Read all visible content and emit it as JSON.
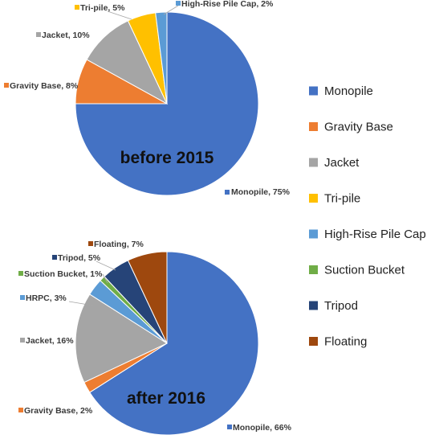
{
  "chart_data": [
    {
      "type": "pie",
      "title": "before 2015",
      "slices": [
        {
          "label": "Monopile",
          "value": 75,
          "display": "Monopile, 75%",
          "color": "#4472C4"
        },
        {
          "label": "Gravity Base",
          "value": 8,
          "display": "Gravity Base, 8%",
          "color": "#ED7D31"
        },
        {
          "label": "Jacket",
          "value": 10,
          "display": "Jacket, 10%",
          "color": "#A5A5A5"
        },
        {
          "label": "Tri-pile",
          "value": 5,
          "display": "Tri-pile, 5%",
          "color": "#FFC000"
        },
        {
          "label": "High-Rise Pile Cap",
          "value": 2,
          "display": "High-Rise Pile Cap, 2%",
          "color": "#5B9BD5"
        }
      ]
    },
    {
      "type": "pie",
      "title": "after 2016",
      "slices": [
        {
          "label": "Monopile",
          "value": 66,
          "display": "Monopile, 66%",
          "color": "#4472C4"
        },
        {
          "label": "Gravity Base",
          "value": 2,
          "display": "Gravity Base, 2%",
          "color": "#ED7D31"
        },
        {
          "label": "Jacket",
          "value": 16,
          "display": "Jacket, 16%",
          "color": "#A5A5A5"
        },
        {
          "label": "HRPC",
          "value": 3,
          "display": "HRPC, 3%",
          "color": "#5B9BD5"
        },
        {
          "label": "Suction Bucket",
          "value": 1,
          "display": "Suction Bucket, 1%",
          "color": "#70AD47"
        },
        {
          "label": "Tripod",
          "value": 5,
          "display": "Tripod, 5%",
          "color": "#264478"
        },
        {
          "label": "Floating",
          "value": 7,
          "display": "Floating, 7%",
          "color": "#9E480E"
        }
      ]
    }
  ],
  "legend": {
    "placement": "right",
    "items": [
      {
        "label": "Monopile",
        "color": "#4472C4"
      },
      {
        "label": "Gravity Base",
        "color": "#ED7D31"
      },
      {
        "label": "Jacket",
        "color": "#A5A5A5"
      },
      {
        "label": "Tri-pile",
        "color": "#FFC000"
      },
      {
        "label": "High-Rise Pile Cap",
        "color": "#5B9BD5"
      },
      {
        "label": "Suction Bucket",
        "color": "#70AD47"
      },
      {
        "label": "Tripod",
        "color": "#264478"
      },
      {
        "label": "Floating",
        "color": "#9E480E"
      }
    ]
  }
}
